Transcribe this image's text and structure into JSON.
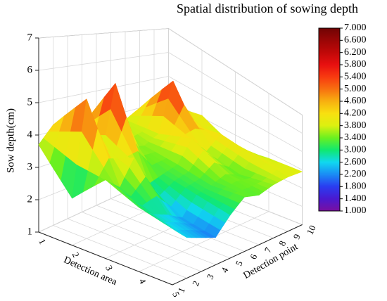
{
  "chart_data": {
    "type": "surface3d",
    "title": "Spatial distribution of sowing depth",
    "xlabel": "Detection area",
    "ylabel": "Detection point",
    "zlabel": "Sow depth(cm)",
    "x": [
      1,
      2,
      3,
      4,
      5
    ],
    "y": [
      1,
      2,
      3,
      4,
      5,
      6,
      7,
      8,
      9,
      10
    ],
    "values": [
      [
        3.7,
        4.2,
        3.6,
        3.9,
        3.8,
        3.9,
        3.7,
        4.0,
        3.9,
        3.8
      ],
      [
        2.5,
        5.6,
        3.4,
        6.0,
        3.6,
        3.5,
        3.8,
        5.8,
        3.9,
        4.1
      ],
      [
        3.6,
        3.2,
        4.1,
        3.0,
        3.2,
        3.4,
        4.3,
        3.6,
        4.2,
        3.4
      ],
      [
        3.2,
        2.8,
        2.6,
        2.3,
        3.0,
        3.2,
        3.5,
        3.3,
        4.0,
        3.7
      ],
      [
        3.0,
        2.5,
        2.3,
        2.1,
        2.8,
        3.4,
        3.3,
        3.6,
        3.8,
        3.9
      ]
    ],
    "xlim": [
      1,
      5
    ],
    "ylim": [
      1,
      10
    ],
    "zlim": [
      1,
      7
    ],
    "xticks": [
      1,
      2,
      3,
      4,
      5
    ],
    "yticks": [
      1,
      2,
      3,
      4,
      5,
      6,
      7,
      8,
      9,
      10
    ],
    "zticks": [
      1,
      2,
      3,
      4,
      5,
      6,
      7
    ],
    "colorbar_ticks": [
      {
        "value": 1,
        "label": "1.000"
      },
      {
        "value": 1.4,
        "label": "1.400"
      },
      {
        "value": 1.8,
        "label": "1.800"
      },
      {
        "value": 2.2,
        "label": "2.200"
      },
      {
        "value": 2.6,
        "label": "2.600"
      },
      {
        "value": 3,
        "label": "3.000"
      },
      {
        "value": 3.4,
        "label": "3.400"
      },
      {
        "value": 3.8,
        "label": "3.800"
      },
      {
        "value": 4.2,
        "label": "4.200"
      },
      {
        "value": 4.6,
        "label": "4.600"
      },
      {
        "value": 5,
        "label": "5.000"
      },
      {
        "value": 5.4,
        "label": "5.400"
      },
      {
        "value": 5.8,
        "label": "5.800"
      },
      {
        "value": 6.2,
        "label": "6.200"
      },
      {
        "value": 6.6,
        "label": "6.600"
      },
      {
        "value": 7,
        "label": "7.000"
      }
    ],
    "colors": [
      "#7a0fa0",
      "#4a1ad0",
      "#2a3cf0",
      "#1a8cf5",
      "#10d8f0",
      "#10e870",
      "#6af020",
      "#dcf010",
      "#f8e010",
      "#f8b010",
      "#f87010",
      "#f83a10",
      "#e81010",
      "#c00808",
      "#9a0606",
      "#700404"
    ]
  }
}
